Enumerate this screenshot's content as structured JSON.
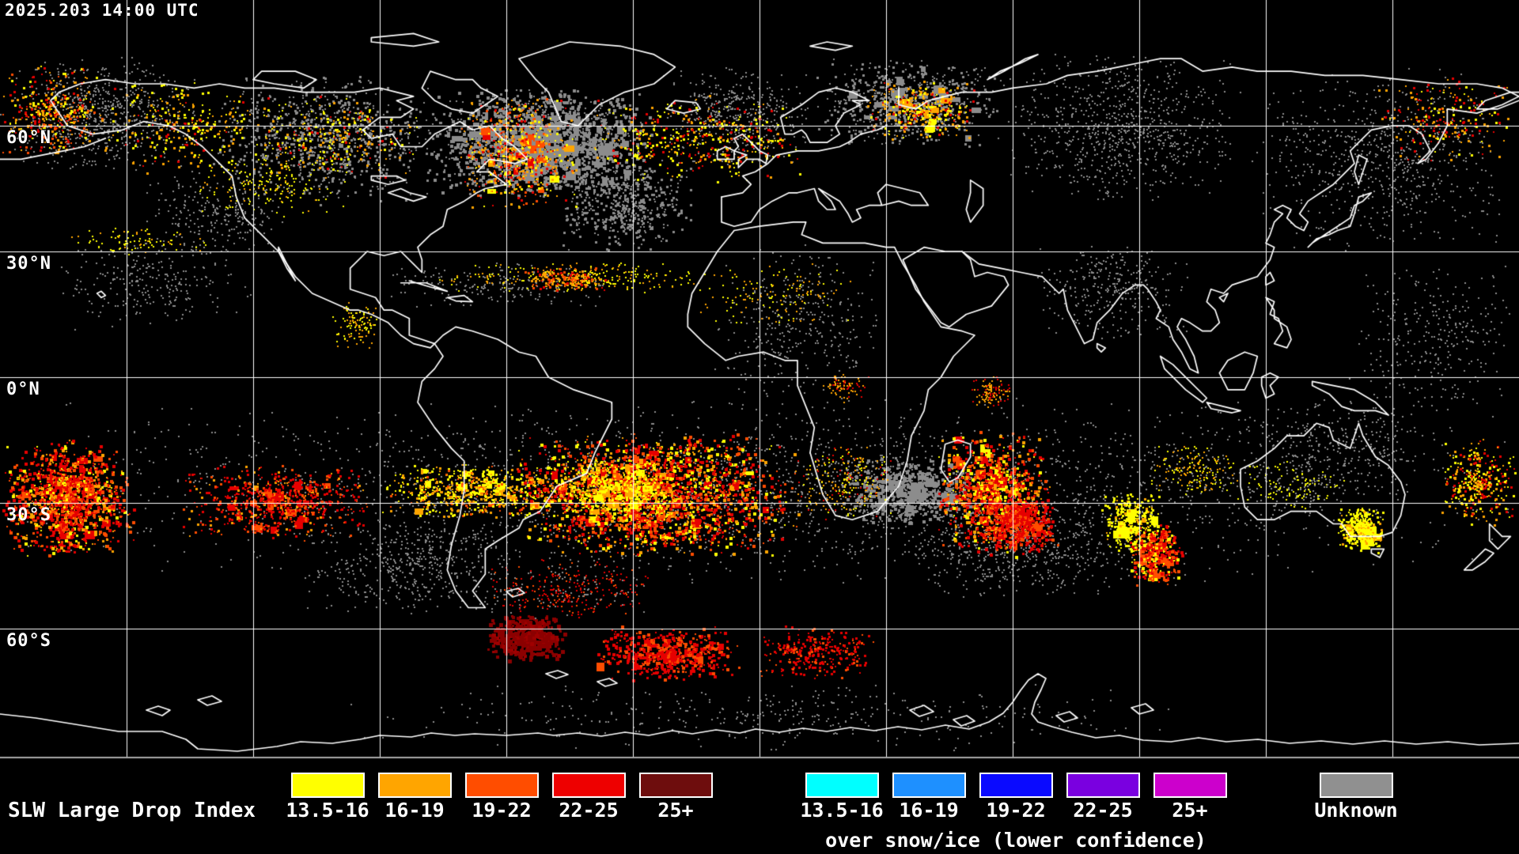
{
  "header": {
    "timestamp": "2025.203 14:00 UTC"
  },
  "map": {
    "lat_labels": [
      {
        "label": "60°N",
        "lat": 60
      },
      {
        "label": "30°N",
        "lat": 30
      },
      {
        "label": "0°N",
        "lat": 0
      },
      {
        "label": "30°S",
        "lat": -30
      },
      {
        "label": "60°S",
        "lat": -60
      }
    ],
    "grid_lat_deg": [
      60,
      30,
      0,
      -30,
      -60
    ],
    "grid_lon_step_deg": 30,
    "colors": {
      "background": "#000000",
      "coastline": "#ffffff",
      "grid": "#ffffff",
      "map_bottom_line": "#aaaaaa",
      "unknown": "#8c8c8c",
      "yellow": "#ffff00",
      "orange": "#ffa500",
      "orange_red": "#ff4d00",
      "red": "#e60000",
      "dark_red": "#8b0000"
    },
    "clusters": [
      [
        0,
        70,
        260,
        150,
        700,
        2,
        3,
        0,
        [
          [
            "#8c8c8c",
            1
          ]
        ]
      ],
      [
        180,
        215,
        180,
        110,
        250,
        2,
        3,
        0,
        [
          [
            "#8c8c8c",
            1
          ]
        ]
      ],
      [
        260,
        90,
        300,
        170,
        900,
        2,
        4,
        0,
        [
          [
            "#8c8c8c",
            1
          ]
        ]
      ],
      [
        540,
        110,
        290,
        140,
        2000,
        2,
        5,
        1,
        [
          [
            "#8c8c8c",
            1
          ]
        ]
      ],
      [
        700,
        200,
        180,
        120,
        500,
        2,
        4,
        0,
        [
          [
            "#8c8c8c",
            1
          ]
        ]
      ],
      [
        830,
        80,
        200,
        130,
        450,
        2,
        3,
        0,
        [
          [
            "#8c8c8c",
            1
          ]
        ]
      ],
      [
        1030,
        70,
        240,
        120,
        700,
        2,
        4,
        1,
        [
          [
            "#8c8c8c",
            1
          ]
        ]
      ],
      [
        1270,
        60,
        300,
        200,
        800,
        2,
        3,
        0,
        [
          [
            "#8c8c8c",
            1
          ]
        ]
      ],
      [
        1580,
        80,
        340,
        240,
        700,
        2,
        3,
        0,
        [
          [
            "#8c8c8c",
            1
          ]
        ]
      ],
      [
        1700,
        330,
        220,
        200,
        300,
        2,
        3,
        0,
        [
          [
            "#8c8c8c",
            1
          ]
        ]
      ],
      [
        900,
        300,
        220,
        220,
        350,
        2,
        3,
        0,
        [
          [
            "#8c8c8c",
            1
          ]
        ]
      ],
      [
        1310,
        300,
        200,
        130,
        300,
        2,
        3,
        0,
        [
          [
            "#8c8c8c",
            1
          ]
        ]
      ],
      [
        0,
        500,
        1920,
        240,
        2600,
        2,
        3,
        0,
        [
          [
            "#8c8c8c",
            1
          ]
        ]
      ],
      [
        1060,
        575,
        180,
        90,
        650,
        2,
        5,
        1,
        [
          [
            "#8c8c8c",
            1
          ]
        ]
      ],
      [
        1140,
        630,
        300,
        130,
        500,
        2,
        3,
        0,
        [
          [
            "#8c8c8c",
            1
          ]
        ]
      ],
      [
        1560,
        500,
        260,
        130,
        300,
        2,
        3,
        0,
        [
          [
            "#8c8c8c",
            1
          ]
        ]
      ],
      [
        380,
        660,
        280,
        120,
        450,
        2,
        3,
        0,
        [
          [
            "#8c8c8c",
            1
          ]
        ]
      ],
      [
        420,
        860,
        1100,
        90,
        350,
        2,
        3,
        0,
        [
          [
            "#8c8c8c",
            1
          ]
        ]
      ],
      [
        60,
        300,
        260,
        120,
        250,
        2,
        3,
        0,
        [
          [
            "#8c8c8c",
            1
          ]
        ]
      ],
      [
        480,
        330,
        300,
        60,
        200,
        2,
        3,
        0,
        [
          [
            "#8c8c8c",
            1
          ]
        ]
      ],
      [
        0,
        80,
        130,
        120,
        350,
        2,
        4,
        0,
        [
          [
            "#ffff00",
            2
          ],
          [
            "#ffa500",
            3
          ],
          [
            "#e60000",
            2
          ],
          [
            "#ff4d00",
            2
          ]
        ]
      ],
      [
        120,
        100,
        220,
        120,
        280,
        2,
        4,
        0,
        [
          [
            "#ffff00",
            3
          ],
          [
            "#ffa500",
            3
          ],
          [
            "#e60000",
            1
          ]
        ]
      ],
      [
        300,
        120,
        240,
        110,
        260,
        2,
        4,
        0,
        [
          [
            "#ffff00",
            3
          ],
          [
            "#ffa500",
            2
          ],
          [
            "#e60000",
            1
          ]
        ]
      ],
      [
        240,
        190,
        200,
        90,
        180,
        2,
        3,
        0,
        [
          [
            "#ffff00",
            3
          ],
          [
            "#ffa500",
            1
          ]
        ]
      ],
      [
        580,
        120,
        150,
        150,
        550,
        2,
        4,
        1,
        [
          [
            "#ffff00",
            2
          ],
          [
            "#ffa500",
            3
          ],
          [
            "#ff4d00",
            2
          ],
          [
            "#e60000",
            2
          ]
        ]
      ],
      [
        740,
        120,
        280,
        110,
        420,
        2,
        4,
        0,
        [
          [
            "#ffff00",
            3
          ],
          [
            "#ffa500",
            2
          ],
          [
            "#e60000",
            2
          ]
        ]
      ],
      [
        1090,
        100,
        150,
        80,
        300,
        2,
        4,
        1,
        [
          [
            "#ffff00",
            2
          ],
          [
            "#ffa500",
            3
          ],
          [
            "#e60000",
            1
          ]
        ]
      ],
      [
        1740,
        90,
        180,
        120,
        220,
        2,
        4,
        0,
        [
          [
            "#ffa500",
            2
          ],
          [
            "#e60000",
            2
          ],
          [
            "#ffff00",
            1
          ]
        ]
      ],
      [
        540,
        330,
        360,
        40,
        260,
        2,
        3,
        0,
        [
          [
            "#ffff00",
            3
          ],
          [
            "#ffa500",
            2
          ]
        ]
      ],
      [
        660,
        335,
        110,
        35,
        160,
        2,
        4,
        0,
        [
          [
            "#ffa500",
            3
          ],
          [
            "#ff4d00",
            2
          ],
          [
            "#e60000",
            1
          ]
        ]
      ],
      [
        80,
        285,
        200,
        40,
        90,
        2,
        3,
        0,
        [
          [
            "#ffff00",
            3
          ],
          [
            "#ffa500",
            1
          ]
        ]
      ],
      [
        420,
        380,
        60,
        60,
        110,
        2,
        3,
        0,
        [
          [
            "#ffff00",
            2
          ],
          [
            "#ffa500",
            2
          ]
        ]
      ],
      [
        880,
        330,
        200,
        90,
        140,
        2,
        3,
        0,
        [
          [
            "#ffff00",
            2
          ],
          [
            "#ffa500",
            2
          ]
        ]
      ],
      [
        1040,
        470,
        60,
        40,
        80,
        2,
        3,
        0,
        [
          [
            "#ffa500",
            3
          ],
          [
            "#e60000",
            1
          ]
        ]
      ],
      [
        1225,
        475,
        55,
        40,
        110,
        2,
        3,
        0,
        [
          [
            "#ffa500",
            3
          ],
          [
            "#e60000",
            2
          ]
        ]
      ],
      [
        0,
        555,
        170,
        150,
        1200,
        2,
        5,
        1,
        [
          [
            "#e60000",
            5
          ],
          [
            "#ff4d00",
            3
          ],
          [
            "#ffa500",
            2
          ],
          [
            "#ffff00",
            1
          ]
        ]
      ],
      [
        230,
        585,
        240,
        100,
        650,
        2,
        4,
        1,
        [
          [
            "#e60000",
            4
          ],
          [
            "#ff4d00",
            2
          ],
          [
            "#ffa500",
            1
          ]
        ]
      ],
      [
        480,
        585,
        230,
        70,
        600,
        2,
        4,
        1,
        [
          [
            "#ffff00",
            4
          ],
          [
            "#ffa500",
            3
          ],
          [
            "#ff4d00",
            1
          ]
        ]
      ],
      [
        640,
        545,
        370,
        160,
        2000,
        2,
        5,
        1,
        [
          [
            "#e60000",
            4
          ],
          [
            "#ff4d00",
            3
          ],
          [
            "#ffa500",
            2
          ],
          [
            "#ffff00",
            2
          ]
        ]
      ],
      [
        700,
        575,
        150,
        80,
        500,
        2,
        4,
        1,
        [
          [
            "#ffff00",
            4
          ],
          [
            "#ffa500",
            2
          ]
        ]
      ],
      [
        615,
        775,
        100,
        60,
        420,
        3,
        6,
        1,
        [
          [
            "#8b0000",
            5
          ],
          [
            "#a00000",
            2
          ]
        ]
      ],
      [
        745,
        790,
        190,
        70,
        550,
        2,
        5,
        1,
        [
          [
            "#e60000",
            4
          ],
          [
            "#ff4d00",
            2
          ]
        ]
      ],
      [
        950,
        790,
        160,
        70,
        300,
        2,
        4,
        0,
        [
          [
            "#e60000",
            3
          ],
          [
            "#ff4d00",
            1
          ]
        ]
      ],
      [
        610,
        705,
        220,
        80,
        350,
        2,
        3,
        0,
        [
          [
            "#e60000",
            2
          ],
          [
            "#ff4d00",
            1
          ],
          [
            "#8c8c8c",
            1
          ]
        ]
      ],
      [
        1000,
        560,
        130,
        100,
        220,
        2,
        3,
        0,
        [
          [
            "#ffa500",
            2
          ],
          [
            "#ffff00",
            2
          ],
          [
            "#e60000",
            1
          ]
        ]
      ],
      [
        1180,
        545,
        150,
        160,
        900,
        2,
        5,
        1,
        [
          [
            "#e60000",
            4
          ],
          [
            "#ff4d00",
            3
          ],
          [
            "#ffff00",
            2
          ],
          [
            "#ffa500",
            2
          ]
        ]
      ],
      [
        1230,
        620,
        110,
        80,
        420,
        2,
        5,
        1,
        [
          [
            "#e60000",
            4
          ],
          [
            "#ff4d00",
            2
          ]
        ]
      ],
      [
        1390,
        620,
        80,
        80,
        300,
        2,
        4,
        1,
        [
          [
            "#ffff00",
            5
          ],
          [
            "#ffa500",
            1
          ]
        ]
      ],
      [
        1425,
        660,
        70,
        80,
        380,
        2,
        5,
        1,
        [
          [
            "#e60000",
            3
          ],
          [
            "#ff4d00",
            3
          ],
          [
            "#ffff00",
            2
          ]
        ]
      ],
      [
        1690,
        640,
        60,
        60,
        330,
        2,
        4,
        1,
        [
          [
            "#ffff00",
            5
          ],
          [
            "#ffa500",
            1
          ]
        ]
      ],
      [
        1820,
        555,
        100,
        110,
        320,
        2,
        4,
        0,
        [
          [
            "#ffa500",
            2
          ],
          [
            "#e60000",
            2
          ],
          [
            "#ffff00",
            2
          ]
        ]
      ],
      [
        1450,
        560,
        120,
        70,
        200,
        2,
        3,
        0,
        [
          [
            "#ffff00",
            2
          ],
          [
            "#ffa500",
            2
          ],
          [
            "#8c8c8c",
            1
          ]
        ]
      ],
      [
        1560,
        580,
        150,
        70,
        180,
        2,
        3,
        0,
        [
          [
            "#ffff00",
            2
          ],
          [
            "#8c8c8c",
            2
          ]
        ]
      ]
    ]
  },
  "legend": {
    "title": "SLW Large Drop Index",
    "classes": [
      {
        "range": "13.5-16",
        "color": "#ffff00"
      },
      {
        "range": "16-19",
        "color": "#ffa500"
      },
      {
        "range": "19-22",
        "color": "#ff4d00"
      },
      {
        "range": "22-25",
        "color": "#ee0000"
      },
      {
        "range": "25+",
        "color": "#6e0d0d"
      }
    ],
    "snow_ice_classes": [
      {
        "range": "13.5-16",
        "color": "#00ffff"
      },
      {
        "range": "16-19",
        "color": "#1e90ff"
      },
      {
        "range": "19-22",
        "color": "#0a0aff"
      },
      {
        "range": "22-25",
        "color": "#7a00e0"
      },
      {
        "range": "25+",
        "color": "#cc00cc"
      }
    ],
    "snow_ice_note": "over snow/ice (lower confidence)",
    "unknown": {
      "label": "Unknown",
      "color": "#909090"
    }
  }
}
